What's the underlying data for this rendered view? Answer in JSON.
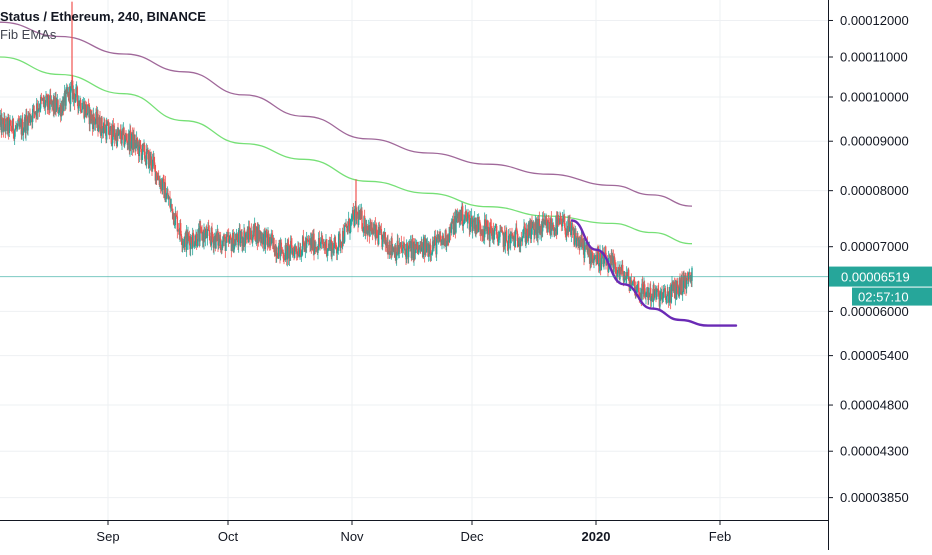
{
  "legend": {
    "title": "Status / Ethereum, 240, BINANCE",
    "indicator": "Fib EMAs"
  },
  "price_label": {
    "value": "0.00006519",
    "countdown": "02:57:10"
  },
  "colors": {
    "up": "#26a69a",
    "down": "#ef5350",
    "ema_slow": "#a0689a",
    "ema_fast": "#76e076",
    "projection": "#6a2ab5",
    "price_line": "#26a69a",
    "grid": "#eef0f3",
    "axis_text": "#131722"
  },
  "chart_data": {
    "type": "line",
    "y_scale": "log",
    "y_ticks": [
      "0.00012000",
      "0.00011000",
      "0.00010000",
      "0.00009000",
      "0.00008000",
      "0.00007000",
      "0.00006000",
      "0.00005400",
      "0.00004800",
      "0.00004300",
      "0.00003850"
    ],
    "x_ticks": [
      "Sep",
      "Oct",
      "Nov",
      "Dec",
      "2020",
      "Feb"
    ],
    "x_tick_dates": [
      "2019-09-01",
      "2019-10-01",
      "2019-11-01",
      "2019-12-01",
      "2020-01-01",
      "2020-02-01"
    ],
    "x_range": [
      "2019-08-05",
      "2020-02-28"
    ],
    "ylim": [
      3.65e-05,
      0.000126
    ],
    "grid": true,
    "last_price": 6.519e-05,
    "series": [
      {
        "kind": "ema",
        "color_key": "ema_slow",
        "points": [
          [
            "2019-08-05",
            0.0001195
          ],
          [
            "2019-08-20",
            0.0001155
          ],
          [
            "2019-09-05",
            0.0001108
          ],
          [
            "2019-09-20",
            0.0001062
          ],
          [
            "2019-10-05",
            0.0001005
          ],
          [
            "2019-10-20",
            9.55e-05
          ],
          [
            "2019-11-05",
            9.05e-05
          ],
          [
            "2019-11-20",
            8.75e-05
          ],
          [
            "2019-12-05",
            8.52e-05
          ],
          [
            "2019-12-20",
            8.32e-05
          ],
          [
            "2020-01-05",
            8.1e-05
          ],
          [
            "2020-01-15",
            7.92e-05
          ],
          [
            "2020-01-25",
            7.71e-05
          ]
        ]
      },
      {
        "kind": "ema",
        "color_key": "ema_fast",
        "points": [
          [
            "2019-08-05",
            0.00011
          ],
          [
            "2019-08-20",
            0.0001055
          ],
          [
            "2019-09-05",
            0.0001008
          ],
          [
            "2019-09-20",
            9.45e-05
          ],
          [
            "2019-10-05",
            8.95e-05
          ],
          [
            "2019-10-20",
            8.62e-05
          ],
          [
            "2019-11-05",
            8.18e-05
          ],
          [
            "2019-11-20",
            7.95e-05
          ],
          [
            "2019-12-05",
            7.7e-05
          ],
          [
            "2019-12-20",
            7.53e-05
          ],
          [
            "2020-01-05",
            7.4e-05
          ],
          [
            "2020-01-15",
            7.24e-05
          ],
          [
            "2020-01-25",
            7.05e-05
          ]
        ]
      },
      {
        "kind": "price",
        "color_key": "up",
        "points": [
          [
            "2019-08-05",
            9.35e-05
          ],
          [
            "2019-08-10",
            9.25e-05
          ],
          [
            "2019-08-15",
            9.85e-05
          ],
          [
            "2019-08-20",
            9.75e-05
          ],
          [
            "2019-08-23",
            0.0001015
          ],
          [
            "2019-08-28",
            9.5e-05
          ],
          [
            "2019-09-02",
            9.15e-05
          ],
          [
            "2019-09-07",
            9e-05
          ],
          [
            "2019-09-12",
            8.55e-05
          ],
          [
            "2019-09-16",
            7.85e-05
          ],
          [
            "2019-09-20",
            7.1e-05
          ],
          [
            "2019-09-25",
            7.2e-05
          ],
          [
            "2019-10-01",
            7.05e-05
          ],
          [
            "2019-10-08",
            7.25e-05
          ],
          [
            "2019-10-15",
            6.9e-05
          ],
          [
            "2019-10-22",
            7.05e-05
          ],
          [
            "2019-10-28",
            7e-05
          ],
          [
            "2019-11-02",
            7.55e-05
          ],
          [
            "2019-11-07",
            7.2e-05
          ],
          [
            "2019-11-12",
            6.95e-05
          ],
          [
            "2019-11-18",
            6.95e-05
          ],
          [
            "2019-11-24",
            7.1e-05
          ],
          [
            "2019-11-28",
            7.55e-05
          ],
          [
            "2019-12-03",
            7.35e-05
          ],
          [
            "2019-12-10",
            7.1e-05
          ],
          [
            "2019-12-17",
            7.3e-05
          ],
          [
            "2019-12-24",
            7.38e-05
          ],
          [
            "2019-12-30",
            6.9e-05
          ],
          [
            "2020-01-06",
            6.65e-05
          ],
          [
            "2020-01-12",
            6.3e-05
          ],
          [
            "2020-01-18",
            6.2e-05
          ],
          [
            "2020-01-25",
            6.52e-05
          ]
        ]
      },
      {
        "kind": "projection",
        "color_key": "projection",
        "points": [
          [
            "2019-12-26",
            7.45e-05
          ],
          [
            "2020-01-01",
            6.95e-05
          ],
          [
            "2020-01-08",
            6.4e-05
          ],
          [
            "2020-01-15",
            6.04e-05
          ],
          [
            "2020-01-22",
            5.88e-05
          ],
          [
            "2020-01-29",
            5.8e-05
          ],
          [
            "2020-02-05",
            5.8e-05
          ]
        ]
      }
    ],
    "spikes": [
      [
        "2019-08-23",
        0.000102,
        0.0001255
      ],
      [
        "2019-11-02",
        7.45e-05,
        8.22e-05
      ]
    ]
  }
}
